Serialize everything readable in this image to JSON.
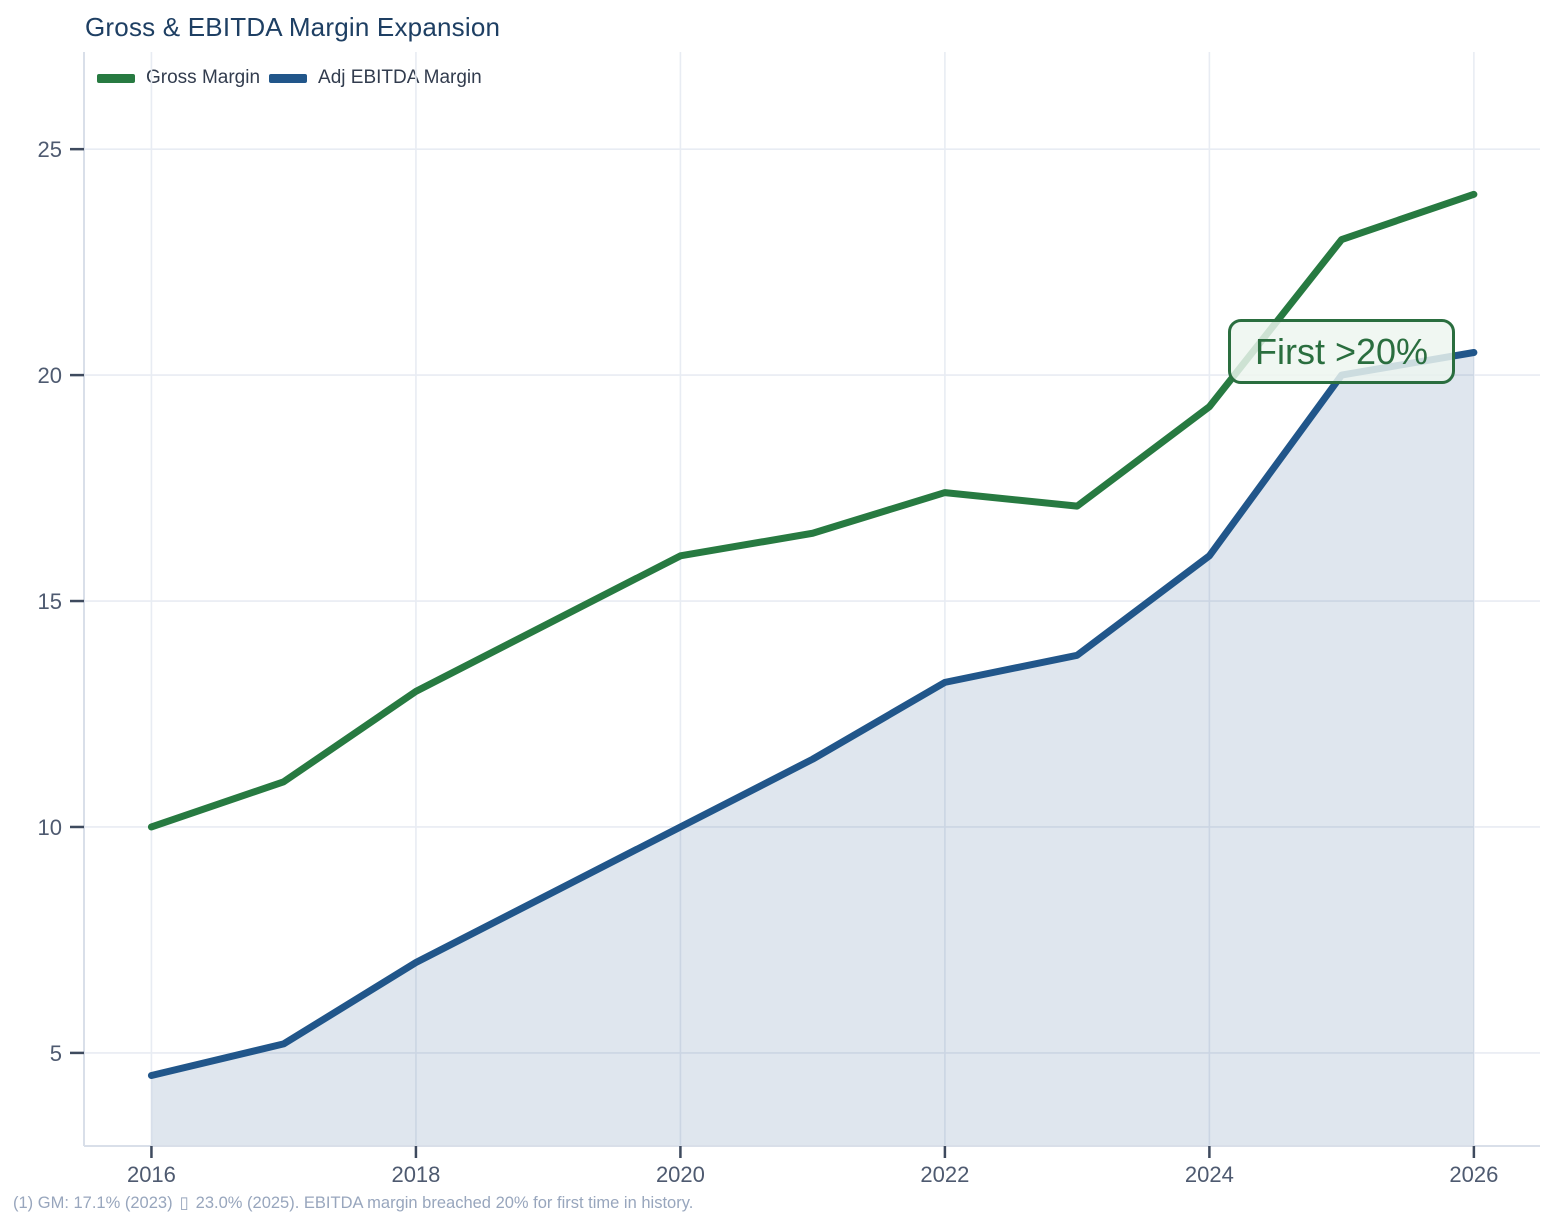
{
  "chart_data": {
    "type": "line",
    "title": "Gross & EBITDA Margin Expansion",
    "x": [
      2016,
      2017,
      2018,
      2019,
      2020,
      2021,
      2022,
      2023,
      2024,
      2025,
      2026
    ],
    "series": [
      {
        "name": "Gross Margin",
        "color": "#277a41",
        "area": false,
        "values": [
          10.0,
          11.0,
          13.0,
          14.5,
          16.0,
          16.5,
          17.4,
          17.1,
          19.3,
          23.0,
          24.0
        ]
      },
      {
        "name": "Adj EBITDA Margin",
        "color": "#21568a",
        "area": true,
        "area_color": "rgba(33,86,138,0.145)",
        "values": [
          4.5,
          5.2,
          7.0,
          8.5,
          10.0,
          11.5,
          13.2,
          13.8,
          16.0,
          20.0,
          20.5
        ]
      }
    ],
    "xticks": [
      2016,
      2018,
      2020,
      2022,
      2024,
      2026
    ],
    "yticks": [
      5,
      10,
      15,
      20,
      25
    ],
    "xlim": [
      2015.49,
      2026.5
    ],
    "ylim": [
      2.94,
      27.15
    ],
    "grid": true,
    "legend_position": "top-left",
    "annotation": {
      "label": "First >20%",
      "x": 2025,
      "y": 20.0
    }
  },
  "footnote": {
    "part1": "(1) GM: 17.1% (2023)",
    "missing_glyph": "▯",
    "part2": "23.0% (2025). EBITDA margin breached 20% for first time in history."
  }
}
